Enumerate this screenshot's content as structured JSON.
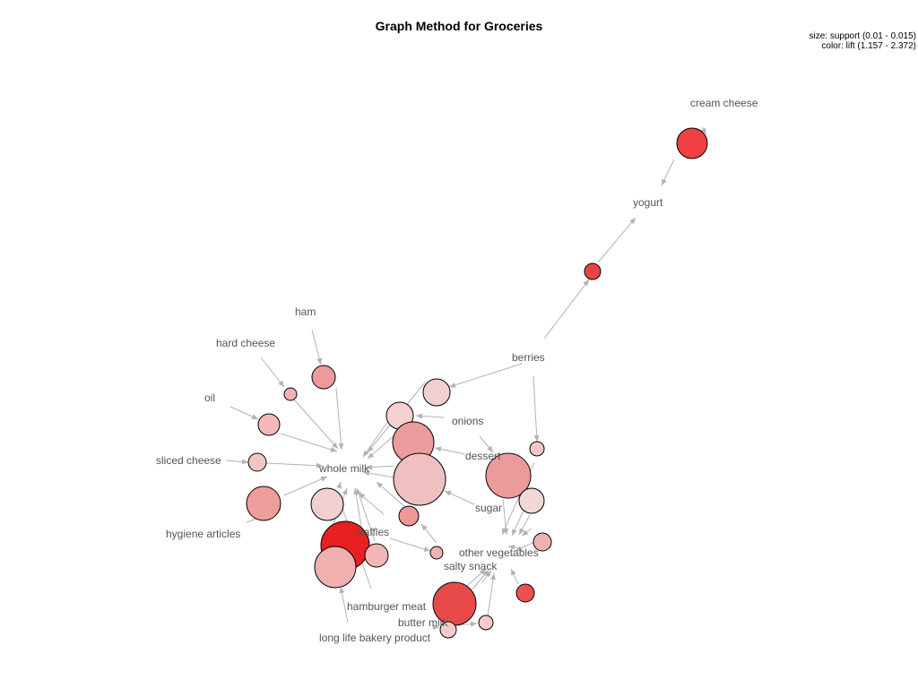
{
  "title": "Graph Method for Groceries",
  "legend": {
    "size": "size: support (0.01 - 0.015)",
    "color": "color: lift (1.157 - 2.372)"
  },
  "colors": {
    "edge": "#b3b3b3",
    "node_stroke": "#000000",
    "label": "#545454"
  },
  "items": [
    "cream cheese",
    "yogurt",
    "ham",
    "hard cheese",
    "oil",
    "berries",
    "onions",
    "dessert",
    "sliced cheese",
    "whole milk",
    "sugar",
    "hygiene articles",
    "waffles",
    "other vegetables",
    "salty snack",
    "hamburger meat",
    "butter milk",
    "long life bakery product"
  ],
  "rule_colors": [
    "#ee4040",
    "#e84444",
    "#ec9a9a",
    "#f0b2b2",
    "#f2baba",
    "#f0d0d0",
    "#f4d0d0",
    "#ec9c9c",
    "#f2c4c4",
    "#eec0c0",
    "#ef9c9c",
    "#f0d0d0",
    "#ec9898",
    "#e82020",
    "#f0b0b0",
    "#f2b6b6",
    "#eeb4b4",
    "#ec9a9a",
    "#f0d8d8",
    "#f2c8c8",
    "#eeb0b0",
    "#ec5050",
    "#e84a4a",
    "#f2cccc",
    "#f2cccc"
  ]
}
